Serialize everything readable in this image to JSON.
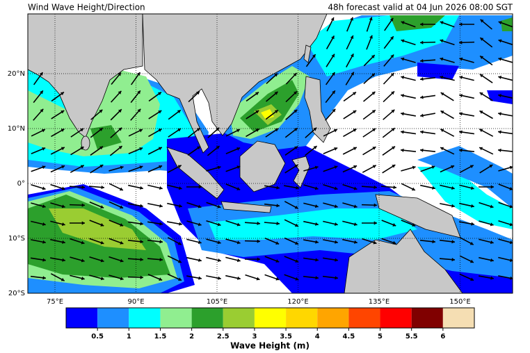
{
  "header": {
    "title": "Wind Wave Height/Direction",
    "valid": "48h forecast valid at 04 Jun 2026 08:00 SGT"
  },
  "map": {
    "lat_labels": [
      "20°N",
      "10°N",
      "0°",
      "10°S",
      "20°S"
    ],
    "lon_labels": [
      "75°E",
      "90°E",
      "105°E",
      "120°E",
      "135°E",
      "150°E"
    ]
  },
  "colorbar": {
    "colors": [
      "#0000ff",
      "#1e8fff",
      "#00ffff",
      "#90ee90",
      "#2ca02c",
      "#9acd32",
      "#ffff00",
      "#ffd700",
      "#ffa500",
      "#ff4500",
      "#ff0000",
      "#800000",
      "#f5deb3"
    ],
    "ticks": [
      "0.5",
      "1",
      "1.5",
      "2",
      "2.5",
      "3",
      "3.5",
      "4",
      "4.5",
      "5",
      "5.5",
      "6"
    ],
    "label": "Wave Height (m)"
  }
}
